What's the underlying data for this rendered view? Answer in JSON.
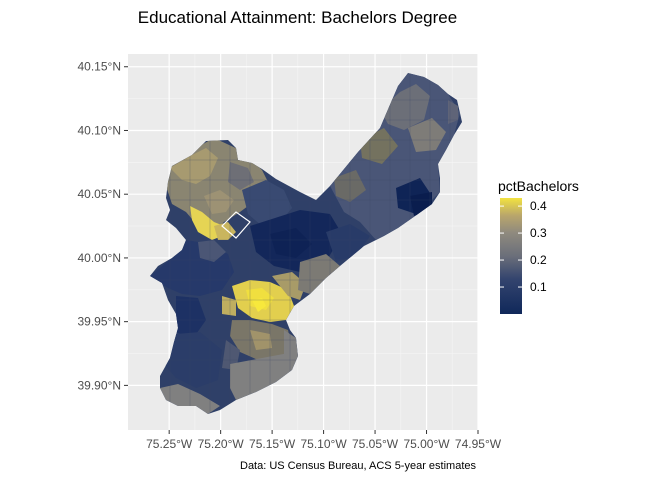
{
  "title": "Educational Attainment: Bachelors Degree",
  "caption": "Data: US Census Bureau, ACS 5-year estimates",
  "chart_data": {
    "type": "choropleth map",
    "x_ticks": [
      "75.25°W",
      "75.20°W",
      "75.15°W",
      "75.10°W",
      "75.05°W",
      "75.00°W",
      "74.95°W"
    ],
    "x_values": [
      -75.25,
      -75.2,
      -75.15,
      -75.1,
      -75.05,
      -75.0,
      -74.95
    ],
    "y_ticks": [
      "39.90°N",
      "39.95°N",
      "40.00°N",
      "40.05°N",
      "40.10°N",
      "40.15°N"
    ],
    "y_values": [
      39.9,
      39.95,
      40.0,
      40.05,
      40.1,
      40.15
    ],
    "xlim": [
      -75.29,
      -74.95
    ],
    "ylim": [
      39.865,
      40.16
    ],
    "legend": {
      "title": "pctBachelors",
      "ticks": [
        "0.1",
        "0.2",
        "0.3",
        "0.4"
      ],
      "tick_values": [
        0.1,
        0.2,
        0.3,
        0.4
      ],
      "range": [
        0.0,
        0.43
      ],
      "colors": [
        "#10285a",
        "#33446e",
        "#6b6f7a",
        "#8f8a7e",
        "#b9a66b",
        "#f2e240"
      ],
      "placement": "right"
    },
    "panel_background": "#ebebeb",
    "grid_color": "#ffffff",
    "na_color": "#808080"
  }
}
